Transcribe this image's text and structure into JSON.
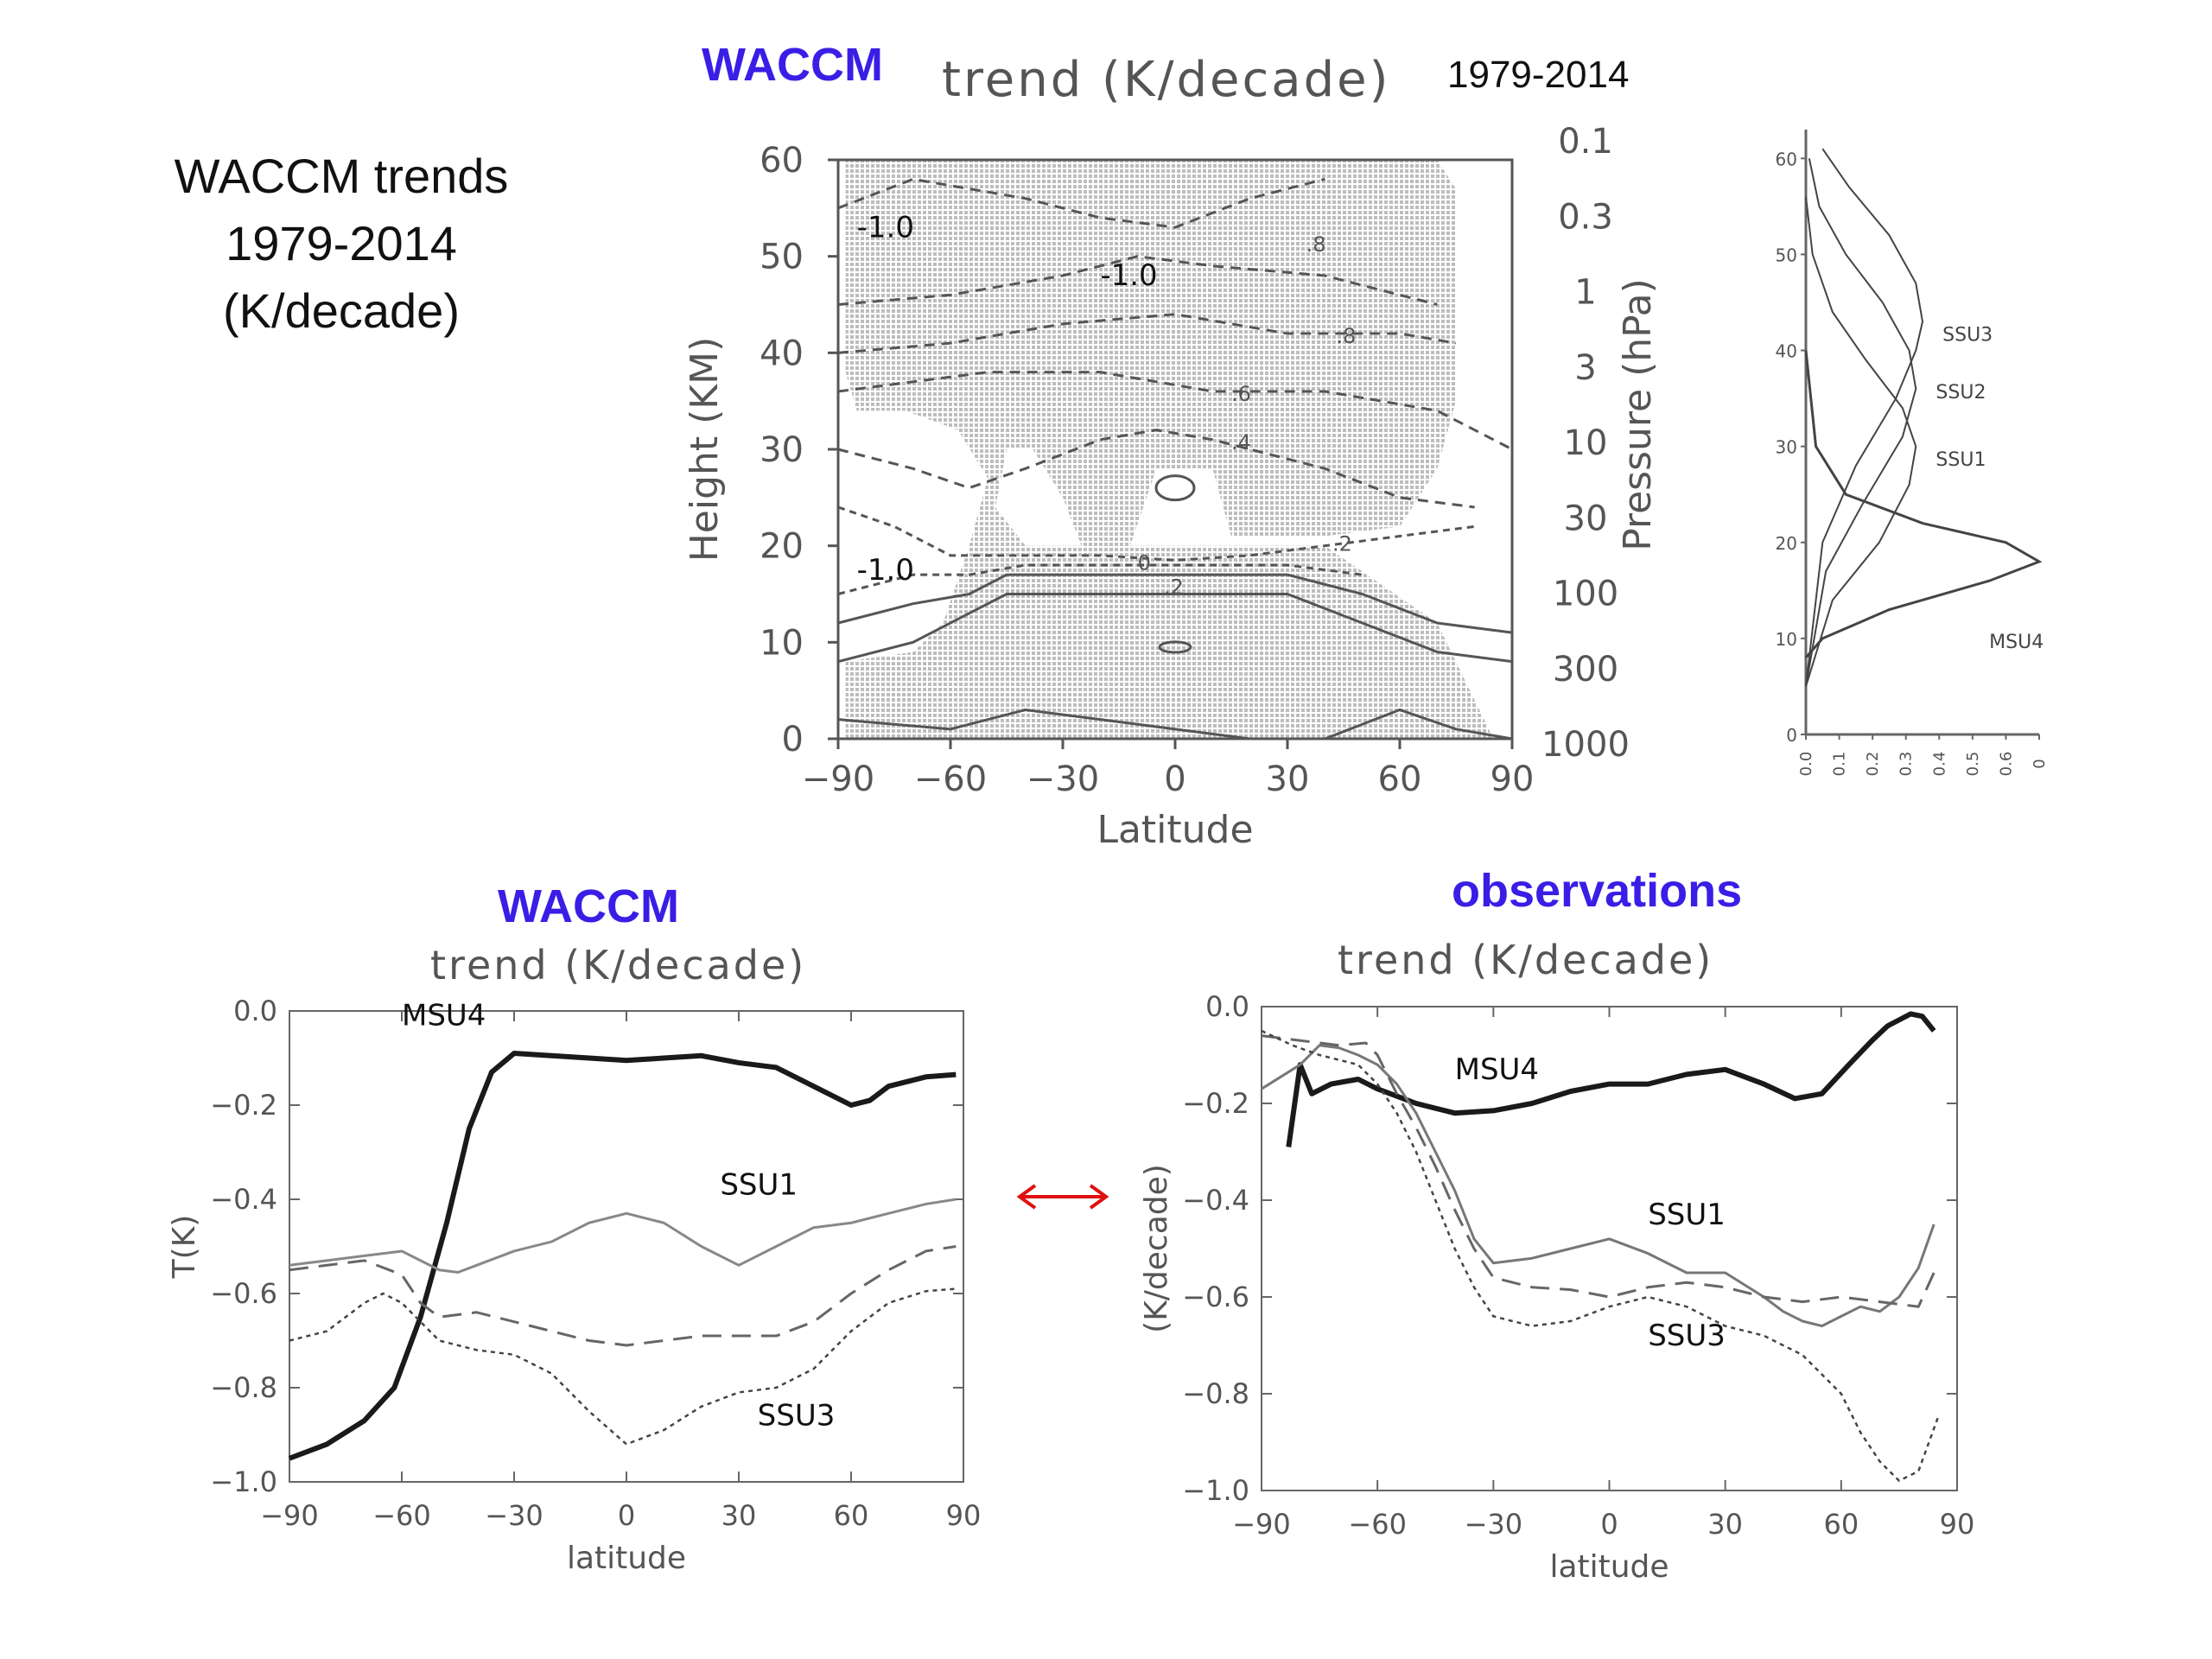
{
  "side_title": {
    "line1": "WACCM trends",
    "line2": "1979-2014",
    "line3": "(K/decade)"
  },
  "top_panel": {
    "model_label": "WACCM",
    "trend_label": "trend (K/decade)",
    "years_label": "1979-2014"
  },
  "bottom_left": {
    "model_label": "WACCM",
    "trend_label": "trend (K/decade)"
  },
  "bottom_right": {
    "model_label": "observations",
    "trend_label": "trend (K/decade)"
  },
  "colors": {
    "title_blue": "#3a1ee6",
    "arrow_red": "#e01010",
    "shading": "#c8c8c8"
  },
  "chart_data": [
    {
      "id": "cross-section",
      "type": "heatmap",
      "title": "trend (K/decade)",
      "xlabel": "Latitude",
      "ylabel": "Height (KM)",
      "y2label": "Pressure (hPa)",
      "xlim": [
        -90,
        90
      ],
      "ylim": [
        0,
        60
      ],
      "xticks": [
        "-90",
        "-60",
        "-30",
        "0",
        "30",
        "60",
        "90"
      ],
      "yticks": [
        "0",
        "10",
        "20",
        "30",
        "40",
        "50",
        "60"
      ],
      "y2ticks": [
        "0.1",
        "0.3",
        "1",
        "3",
        "10",
        "30",
        "100",
        "300",
        "1000"
      ],
      "annotations": [
        {
          "text": "-1.0",
          "x": -85,
          "y": 52
        },
        {
          "text": "-1.0",
          "x": -20,
          "y": 47
        },
        {
          "text": "-1.0",
          "x": -85,
          "y": 16.5
        },
        {
          "text": ".8",
          "x": 35,
          "y": 50.5
        },
        {
          "text": ".8",
          "x": 43,
          "y": 41
        },
        {
          "text": ".6",
          "x": 15,
          "y": 35
        },
        {
          "text": ".4",
          "x": 15,
          "y": 30
        },
        {
          "text": ".2",
          "x": 42,
          "y": 19.5
        },
        {
          "text": "0",
          "x": -10,
          "y": 17.5
        },
        {
          "text": ".2",
          "x": -3,
          "y": 15
        }
      ]
    },
    {
      "id": "weighting-functions",
      "type": "line",
      "xticks": [
        "0.0",
        "0.1",
        "0.2",
        "0.3",
        "0.4",
        "0.5",
        "0.6",
        "0"
      ],
      "yticks": [
        "0",
        "10",
        "20",
        "30",
        "40",
        "50",
        "60"
      ],
      "series": [
        {
          "name": "SSU3",
          "peak_height_km": 43,
          "peak_value": 0.35,
          "x": [
            0,
            0.05,
            0.15,
            0.27,
            0.33,
            0.35,
            0.33,
            0.25,
            0.13,
            0.05
          ],
          "y": [
            5,
            20,
            28,
            35,
            40,
            43,
            47,
            52,
            57,
            61
          ]
        },
        {
          "name": "SSU2",
          "peak_height_km": 37,
          "peak_value": 0.33,
          "x": [
            0,
            0.06,
            0.17,
            0.29,
            0.33,
            0.31,
            0.23,
            0.12,
            0.04,
            0.01
          ],
          "y": [
            5,
            17,
            24,
            31,
            36,
            40,
            45,
            50,
            55,
            60
          ]
        },
        {
          "name": "SSU1",
          "peak_height_km": 30,
          "peak_value": 0.33,
          "x": [
            0,
            0.08,
            0.22,
            0.31,
            0.33,
            0.29,
            0.18,
            0.08,
            0.02,
            0.0
          ],
          "y": [
            5,
            14,
            20,
            26,
            30,
            34,
            39,
            44,
            50,
            56
          ]
        },
        {
          "name": "MSU4",
          "peak_height_km": 18,
          "peak_value": 0.7,
          "x": [
            0,
            0.05,
            0.25,
            0.55,
            0.7,
            0.6,
            0.35,
            0.12,
            0.03,
            0.0
          ],
          "y": [
            8,
            10,
            13,
            16,
            18,
            20,
            22,
            25,
            30,
            40
          ]
        }
      ]
    },
    {
      "id": "waccm-profiles",
      "type": "line",
      "xlabel": "latitude",
      "ylabel": "T(K)",
      "xlim": [
        -90,
        90
      ],
      "ylim": [
        -1.0,
        0.0
      ],
      "xticks": [
        "−90",
        "−60",
        "−30",
        "0",
        "30",
        "60",
        "90"
      ],
      "yticks": [
        "0.0",
        "−0.2",
        "−0.4",
        "−0.6",
        "−0.8",
        "−1.0"
      ],
      "series": [
        {
          "name": "MSU4",
          "x": [
            -90,
            -80,
            -70,
            -62,
            -55,
            -48,
            -42,
            -36,
            -30,
            -20,
            -10,
            0,
            10,
            20,
            30,
            40,
            50,
            60,
            65,
            70,
            80,
            88
          ],
          "y": [
            -0.95,
            -0.92,
            -0.87,
            -0.8,
            -0.65,
            -0.45,
            -0.25,
            -0.13,
            -0.09,
            -0.095,
            -0.1,
            -0.105,
            -0.1,
            -0.095,
            -0.11,
            -0.12,
            -0.16,
            -0.2,
            -0.19,
            -0.16,
            -0.14,
            -0.135
          ]
        },
        {
          "name": "SSU1",
          "x": [
            -90,
            -80,
            -70,
            -60,
            -50,
            -45,
            -40,
            -30,
            -20,
            -10,
            0,
            10,
            20,
            30,
            40,
            50,
            60,
            70,
            80,
            88
          ],
          "y": [
            -0.54,
            -0.53,
            -0.52,
            -0.51,
            -0.55,
            -0.555,
            -0.54,
            -0.51,
            -0.49,
            -0.45,
            -0.43,
            -0.45,
            -0.5,
            -0.54,
            -0.5,
            -0.46,
            -0.45,
            -0.43,
            -0.41,
            -0.4
          ]
        },
        {
          "name": "",
          "x": [
            -90,
            -80,
            -70,
            -60,
            -55,
            -50,
            -40,
            -30,
            -20,
            -10,
            0,
            10,
            20,
            30,
            40,
            50,
            60,
            70,
            80,
            88
          ],
          "y": [
            -0.55,
            -0.54,
            -0.53,
            -0.56,
            -0.62,
            -0.65,
            -0.64,
            -0.66,
            -0.68,
            -0.7,
            -0.71,
            -0.7,
            -0.69,
            -0.69,
            -0.69,
            -0.66,
            -0.6,
            -0.55,
            -0.51,
            -0.5
          ]
        },
        {
          "name": "SSU3",
          "x": [
            -90,
            -80,
            -70,
            -65,
            -60,
            -55,
            -50,
            -40,
            -30,
            -20,
            -10,
            0,
            10,
            20,
            30,
            40,
            50,
            60,
            70,
            80,
            88
          ],
          "y": [
            -0.7,
            -0.68,
            -0.62,
            -0.6,
            -0.62,
            -0.66,
            -0.7,
            -0.72,
            -0.73,
            -0.77,
            -0.85,
            -0.92,
            -0.89,
            -0.84,
            -0.81,
            -0.8,
            -0.76,
            -0.68,
            -0.62,
            -0.595,
            -0.59
          ]
        }
      ],
      "annotations": [
        {
          "text": "MSU4",
          "x": -60,
          "y": -0.03
        },
        {
          "text": "SSU1",
          "x": 25,
          "y": -0.39
        },
        {
          "text": "SSU3",
          "x": 35,
          "y": -0.88
        }
      ]
    },
    {
      "id": "observed-profiles",
      "type": "line",
      "xlabel": "latitude",
      "ylabel": "(K/decade)",
      "xlim": [
        -90,
        90
      ],
      "ylim": [
        -1.0,
        0.0
      ],
      "xticks": [
        "−90",
        "−60",
        "−30",
        "0",
        "30",
        "60",
        "90"
      ],
      "yticks": [
        "0.0",
        "−0.2",
        "−0.4",
        "−0.6",
        "−0.8",
        "−1.0"
      ],
      "series": [
        {
          "name": "MSU4",
          "x": [
            -83,
            -80,
            -77,
            -72,
            -65,
            -60,
            -50,
            -40,
            -30,
            -20,
            -10,
            0,
            10,
            20,
            30,
            40,
            48,
            55,
            62,
            68,
            72,
            78,
            81,
            84
          ],
          "y": [
            -0.29,
            -0.12,
            -0.18,
            -0.16,
            -0.15,
            -0.17,
            -0.2,
            -0.22,
            -0.215,
            -0.2,
            -0.175,
            -0.16,
            -0.16,
            -0.14,
            -0.13,
            -0.16,
            -0.19,
            -0.18,
            -0.12,
            -0.07,
            -0.04,
            -0.015,
            -0.02,
            -0.05
          ]
        },
        {
          "name": "SSU1",
          "x": [
            -90,
            -80,
            -75,
            -70,
            -65,
            -60,
            -55,
            -50,
            -45,
            -40,
            -35,
            -30,
            -20,
            -10,
            0,
            10,
            20,
            30,
            40,
            45,
            50,
            55,
            60,
            65,
            70,
            75,
            80,
            84
          ],
          "y": [
            -0.17,
            -0.12,
            -0.08,
            -0.085,
            -0.1,
            -0.12,
            -0.16,
            -0.22,
            -0.3,
            -0.38,
            -0.48,
            -0.53,
            -0.52,
            -0.5,
            -0.48,
            -0.51,
            -0.55,
            -0.55,
            -0.6,
            -0.63,
            -0.65,
            -0.66,
            -0.64,
            -0.62,
            -0.63,
            -0.6,
            -0.54,
            -0.45
          ]
        },
        {
          "name": "",
          "x": [
            -90,
            -80,
            -70,
            -63,
            -60,
            -55,
            -50,
            -45,
            -40,
            -35,
            -30,
            -20,
            -10,
            0,
            10,
            20,
            30,
            40,
            50,
            60,
            70,
            80,
            84
          ],
          "y": [
            -0.06,
            -0.07,
            -0.08,
            -0.075,
            -0.1,
            -0.18,
            -0.25,
            -0.33,
            -0.42,
            -0.5,
            -0.56,
            -0.58,
            -0.585,
            -0.6,
            -0.58,
            -0.57,
            -0.58,
            -0.6,
            -0.61,
            -0.6,
            -0.61,
            -0.62,
            -0.55
          ]
        },
        {
          "name": "SSU3",
          "x": [
            -90,
            -82,
            -75,
            -70,
            -65,
            -60,
            -55,
            -50,
            -45,
            -40,
            -35,
            -30,
            -20,
            -10,
            0,
            10,
            20,
            30,
            40,
            50,
            60,
            65,
            70,
            75,
            80,
            85
          ],
          "y": [
            -0.05,
            -0.08,
            -0.1,
            -0.11,
            -0.12,
            -0.16,
            -0.22,
            -0.3,
            -0.4,
            -0.5,
            -0.58,
            -0.64,
            -0.66,
            -0.65,
            -0.62,
            -0.6,
            -0.62,
            -0.66,
            -0.68,
            -0.72,
            -0.8,
            -0.88,
            -0.94,
            -0.98,
            -0.96,
            -0.85
          ]
        }
      ],
      "annotations": [
        {
          "text": "MSU4",
          "x": -40,
          "y": -0.15
        },
        {
          "text": "SSU1",
          "x": 10,
          "y": -0.45
        },
        {
          "text": "SSU3",
          "x": 10,
          "y": -0.7
        }
      ]
    }
  ]
}
